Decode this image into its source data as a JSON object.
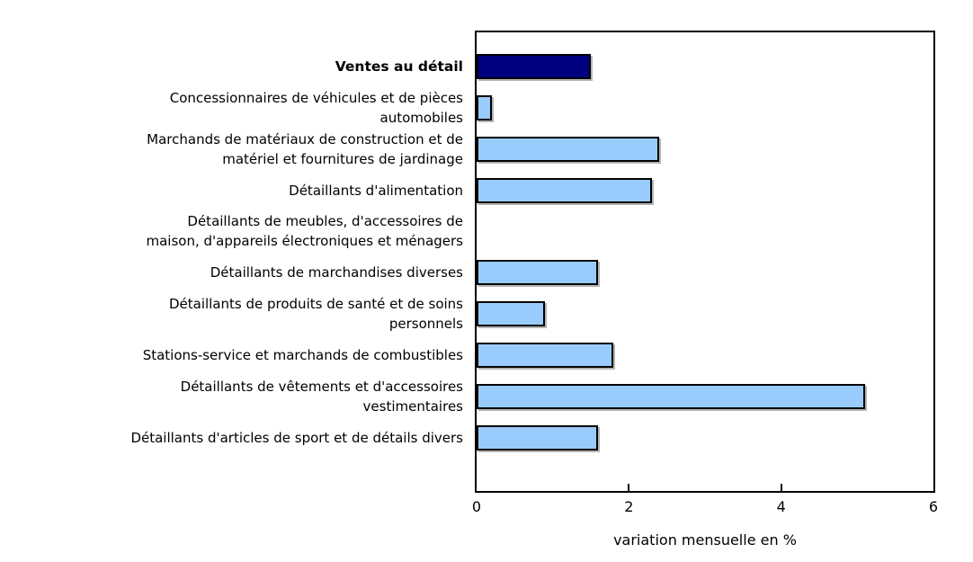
{
  "chart_data": {
    "type": "bar",
    "orientation": "horizontal",
    "title": "",
    "xlabel": "variation mensuelle en %",
    "ylabel": "",
    "xlim": [
      0,
      6
    ],
    "xticks": [
      0,
      2,
      4,
      6
    ],
    "grid": "off",
    "legend": "none",
    "highlight_index": 0,
    "categories": [
      "Ventes au détail",
      "Concessionnaires de véhicules et de pièces automobiles",
      "Marchands de matériaux de construction et de matériel et fournitures de jardinage",
      "Détaillants d'alimentation",
      "Détaillants de meubles, d'accessoires de maison, d'appareils électroniques et ménagers",
      "Détaillants de marchandises diverses",
      "Détaillants de produits de santé et de soins personnels",
      "Stations-service et marchands de combustibles",
      "Détaillants de vêtements et d'accessoires vestimentaires",
      "Détaillants d'articles de sport et de détails divers"
    ],
    "category_lines": [
      [
        "Ventes au détail"
      ],
      [
        "Concessionnaires de véhicules et de pièces",
        "automobiles"
      ],
      [
        "Marchands de matériaux de construction et de",
        "matériel et fournitures de jardinage"
      ],
      [
        "Détaillants d'alimentation"
      ],
      [
        "Détaillants de meubles, d'accessoires de",
        "maison, d'appareils électroniques et ménagers"
      ],
      [
        "Détaillants de marchandises diverses"
      ],
      [
        "Détaillants de produits de santé et de soins",
        "personnels"
      ],
      [
        "Stations-service et marchands de combustibles"
      ],
      [
        "Détaillants de vêtements et d'accessoires",
        "vestimentaires"
      ],
      [
        "Détaillants d'articles de sport et de détails divers"
      ]
    ],
    "values": [
      1.5,
      0.2,
      2.4,
      2.3,
      0,
      1.6,
      0.9,
      1.8,
      5.1,
      1.6
    ],
    "colors": {
      "highlight_bar": "#000080",
      "bar": "#99CCFC",
      "bar_border": "#000000",
      "axis": "#000000",
      "text": "#000000",
      "background": "#FFFFFF"
    }
  }
}
